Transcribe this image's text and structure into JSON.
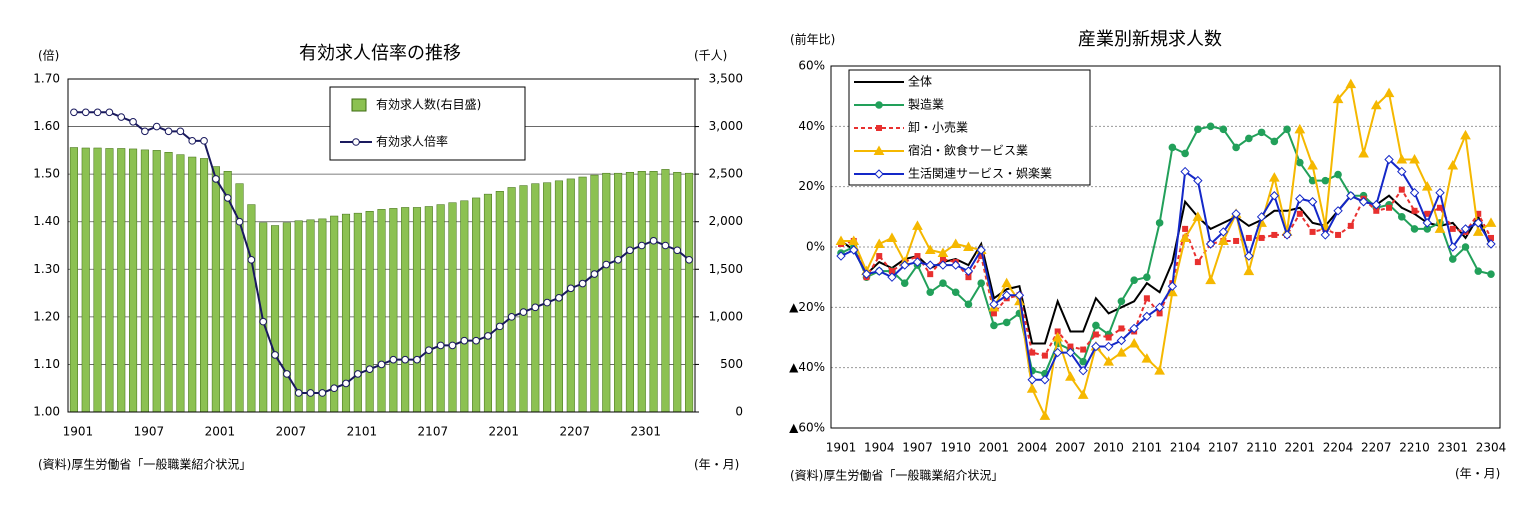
{
  "chart_data": [
    {
      "type": "combo",
      "title": "有効求人倍率の推移",
      "y_label": "(倍)",
      "y2_label": "(千人)",
      "x_label": "(年・月)",
      "source": "(資料)厚生労働省「一般職業紹介状況」",
      "categories": [
        "1901",
        null,
        null,
        null,
        null,
        null,
        "1907",
        null,
        null,
        null,
        null,
        null,
        "2001",
        null,
        null,
        null,
        null,
        null,
        "2007",
        null,
        null,
        null,
        null,
        null,
        "2101",
        null,
        null,
        null,
        null,
        null,
        "2107",
        null,
        null,
        null,
        null,
        null,
        "2201",
        null,
        null,
        null,
        null,
        null,
        "2207",
        null,
        null,
        null,
        null,
        null,
        "2301",
        null,
        null,
        null,
        null
      ],
      "series": [
        {
          "name": "有効求人数(右目盛)",
          "kind": "bar",
          "axis": "y2",
          "color": "#8cc152",
          "values": [
            2780,
            2775,
            2775,
            2770,
            2770,
            2765,
            2755,
            2750,
            2730,
            2705,
            2680,
            2665,
            2580,
            2530,
            2400,
            2180,
            1990,
            1960,
            1990,
            2010,
            2020,
            2030,
            2060,
            2080,
            2090,
            2110,
            2130,
            2140,
            2150,
            2150,
            2160,
            2180,
            2200,
            2220,
            2250,
            2290,
            2320,
            2360,
            2380,
            2400,
            2410,
            2430,
            2450,
            2470,
            2490,
            2510,
            2510,
            2520,
            2530,
            2530,
            2550,
            2520,
            2510
          ]
        },
        {
          "name": "有効求人倍率",
          "kind": "line",
          "axis": "y",
          "color": "#1a1a5e",
          "marker": "circle",
          "marker_fill": "#ffffff",
          "values": [
            1.63,
            1.63,
            1.63,
            1.63,
            1.62,
            1.61,
            1.59,
            1.6,
            1.59,
            1.59,
            1.57,
            1.57,
            1.49,
            1.45,
            1.4,
            1.32,
            1.19,
            1.12,
            1.08,
            1.04,
            1.04,
            1.04,
            1.05,
            1.06,
            1.08,
            1.09,
            1.1,
            1.11,
            1.11,
            1.11,
            1.13,
            1.14,
            1.14,
            1.15,
            1.15,
            1.16,
            1.18,
            1.2,
            1.21,
            1.22,
            1.23,
            1.24,
            1.26,
            1.27,
            1.29,
            1.31,
            1.32,
            1.34,
            1.35,
            1.36,
            1.35,
            1.34,
            1.32
          ]
        }
      ],
      "ylim": [
        1.0,
        1.7
      ],
      "yticks": [
        {
          "value": 1.0,
          "label": "1.00"
        },
        {
          "value": 1.1,
          "label": "1.10"
        },
        {
          "value": 1.2,
          "label": "1.20"
        },
        {
          "value": 1.3,
          "label": "1.30"
        },
        {
          "value": 1.4,
          "label": "1.40"
        },
        {
          "value": 1.5,
          "label": "1.50"
        },
        {
          "value": 1.6,
          "label": "1.60"
        },
        {
          "value": 1.7,
          "label": "1.70"
        }
      ],
      "y2lim": [
        0,
        3500
      ],
      "y2ticks": [
        0,
        500,
        {
          "value": 1000,
          "label": "1,000"
        },
        {
          "value": 1500,
          "label": "1,500"
        },
        {
          "value": 2000,
          "label": "2,000"
        },
        {
          "value": 2500,
          "label": "2,500"
        },
        {
          "value": 3000,
          "label": "3,000"
        },
        {
          "value": 3500,
          "label": "3,500"
        }
      ],
      "grid": true
    },
    {
      "type": "line",
      "title": "産業別新規求人数",
      "y_label": "(前年比)",
      "x_label": "(年・月)",
      "source": "(資料)厚生労働省「一般職業紹介状況」",
      "categories": [
        "1901",
        null,
        null,
        "1904",
        null,
        null,
        "1907",
        null,
        null,
        "1910",
        null,
        null,
        "2001",
        null,
        null,
        "2004",
        null,
        null,
        "2007",
        null,
        null,
        "2010",
        null,
        null,
        "2101",
        null,
        null,
        "2104",
        null,
        null,
        "2107",
        null,
        null,
        "2110",
        null,
        null,
        "2201",
        null,
        null,
        "2204",
        null,
        null,
        "2207",
        null,
        null,
        "2210",
        null,
        null,
        "2301",
        null,
        null,
        "2304"
      ],
      "series": [
        {
          "name": "全体",
          "color": "#000000",
          "values": [
            2,
            -1,
            -9,
            -5,
            -7,
            -4,
            -3,
            -7,
            -5,
            -4,
            -6,
            1,
            -17,
            -14,
            -13,
            -32,
            -32,
            -18,
            -28,
            -28,
            -17,
            -22,
            -20,
            -18,
            -12,
            -15,
            -5,
            15,
            10,
            6,
            8,
            10,
            7,
            9,
            12,
            12,
            13,
            8,
            7,
            12,
            17,
            15,
            14,
            17,
            13,
            11,
            8,
            7,
            8,
            3,
            10,
            0
          ]
        },
        {
          "name": "製造業",
          "color": "#22a05a",
          "marker": "circle",
          "marker_fill": "#22a05a",
          "values": [
            -2,
            0,
            -10,
            -8,
            -8,
            -12,
            -6,
            -15,
            -12,
            -15,
            -19,
            -12,
            -26,
            -25,
            -22,
            -41,
            -42,
            -32,
            -34,
            -38,
            -26,
            -29,
            -18,
            -11,
            -10,
            8,
            33,
            31,
            39,
            40,
            39,
            33,
            36,
            38,
            35,
            39,
            28,
            22,
            22,
            24,
            17,
            17,
            13,
            14,
            10,
            6,
            6,
            8,
            -4,
            0,
            -8,
            -9
          ]
        },
        {
          "name": "卸・小売業",
          "color": "#e8302f",
          "marker": "square",
          "marker_fill": "#e8302f",
          "dash": true,
          "values": [
            1,
            2,
            -10,
            -3,
            -8,
            -5,
            -3,
            -9,
            -4,
            -5,
            -10,
            -3,
            -22,
            -17,
            -16,
            -35,
            -36,
            -28,
            -33,
            -34,
            -29,
            -30,
            -27,
            -28,
            -17,
            -22,
            -12,
            6,
            -5,
            1,
            2,
            2,
            3,
            3,
            4,
            4,
            11,
            5,
            6,
            4,
            7,
            16,
            12,
            13,
            19,
            12,
            11,
            13,
            6,
            5,
            11,
            3
          ]
        },
        {
          "name": "宿泊・飲食サービス業",
          "color": "#f5b800",
          "marker": "triangle",
          "marker_fill": "#f5b800",
          "values": [
            2,
            2,
            -8,
            1,
            3,
            -5,
            7,
            -1,
            -2,
            1,
            0,
            -1,
            -20,
            -12,
            -18,
            -47,
            -56,
            -30,
            -43,
            -49,
            -33,
            -38,
            -35,
            -32,
            -37,
            -41,
            -15,
            3,
            10,
            -11,
            2,
            11,
            -8,
            8,
            23,
            5,
            39,
            27,
            7,
            49,
            54,
            31,
            47,
            51,
            29,
            29,
            20,
            6,
            27,
            37,
            5,
            8
          ]
        },
        {
          "name": "生活関連サービス・娯楽業",
          "color": "#1428c8",
          "marker": "diamond",
          "marker_fill": "#ffffff",
          "values": [
            -3,
            -1,
            -9,
            -8,
            -10,
            -6,
            -5,
            -6,
            -6,
            -6,
            -8,
            -1,
            -19,
            -16,
            -16,
            -44,
            -44,
            -35,
            -35,
            -41,
            -33,
            -33,
            -31,
            -27,
            -23,
            -20,
            -13,
            25,
            22,
            1,
            5,
            11,
            -3,
            10,
            17,
            4,
            16,
            15,
            4,
            12,
            17,
            15,
            14,
            29,
            25,
            18,
            8,
            18,
            0,
            6,
            8,
            1
          ]
        }
      ],
      "ylim": [
        -60,
        60
      ],
      "yticks": [
        {
          "value": -60,
          "label": "▲60%"
        },
        {
          "value": -40,
          "label": "▲40%"
        },
        {
          "value": -20,
          "label": "▲20%"
        },
        {
          "value": 0,
          "label": "0%"
        },
        {
          "value": 20,
          "label": "20%"
        },
        {
          "value": 40,
          "label": "40%"
        },
        {
          "value": 60,
          "label": "60%"
        }
      ],
      "grid": true
    }
  ]
}
